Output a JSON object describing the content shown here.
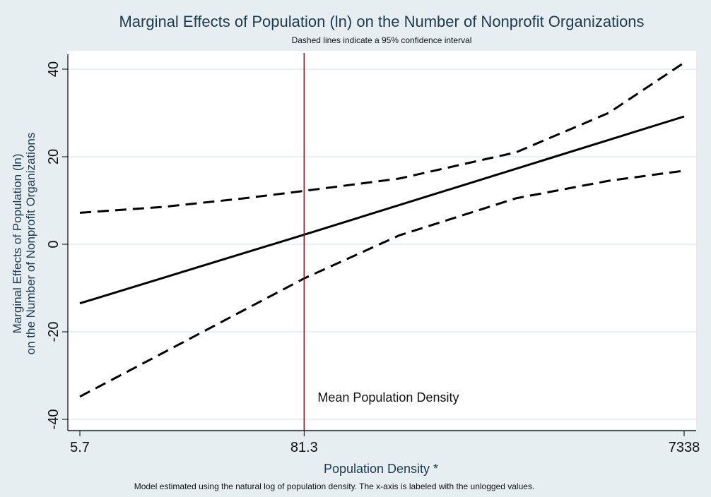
{
  "chart_data": {
    "type": "line",
    "title": "Marginal Effects of Population (ln) on the Number of Nonprofit Organizations",
    "subtitle": "Dashed lines indicate a 95% confidence interval",
    "xlabel": "Population Density *",
    "ylabel_line1": "Marginal Effects of Population (ln)",
    "ylabel_line2": "on the Number of Nonprofit Organizations",
    "note": "Model estimated using the natural log of population density. The x-axis is labeled with the unlogged values.",
    "x_scale": "log",
    "xlim": [
      5.7,
      7338
    ],
    "ylim": [
      -42,
      42
    ],
    "x_ticks": [
      {
        "value": 5.7,
        "label": "5.7"
      },
      {
        "value": 81.3,
        "label": "81.3"
      },
      {
        "value": 7338,
        "label": "7338"
      }
    ],
    "y_ticks": [
      {
        "value": -40,
        "label": "-40"
      },
      {
        "value": -20,
        "label": "-20"
      },
      {
        "value": 0,
        "label": "0"
      },
      {
        "value": 20,
        "label": "20"
      },
      {
        "value": 40,
        "label": "40"
      }
    ],
    "grid": true,
    "series": [
      {
        "role": "estimate",
        "style": "solid",
        "color": "#000000",
        "x": [
          5.7,
          81.3,
          7338
        ],
        "y": [
          -13.5,
          2.2,
          29.2
        ]
      },
      {
        "role": "upper",
        "style": "dashed",
        "color": "#000000",
        "x": [
          5.7,
          15,
          40,
          81.3,
          250,
          1000,
          3000,
          7338
        ],
        "y": [
          7.2,
          8.5,
          10.5,
          12.2,
          15,
          21,
          30,
          41.5
        ]
      },
      {
        "role": "lower",
        "style": "dashed",
        "color": "#000000",
        "x": [
          5.7,
          15,
          40,
          81.3,
          250,
          1000,
          3000,
          7338
        ],
        "y": [
          -34.8,
          -25,
          -15,
          -7.8,
          2,
          10.5,
          14.5,
          16.8
        ]
      }
    ],
    "reference_line": {
      "x": 81.3,
      "color": "#8b1a2b",
      "label": "Mean Population Density"
    }
  }
}
